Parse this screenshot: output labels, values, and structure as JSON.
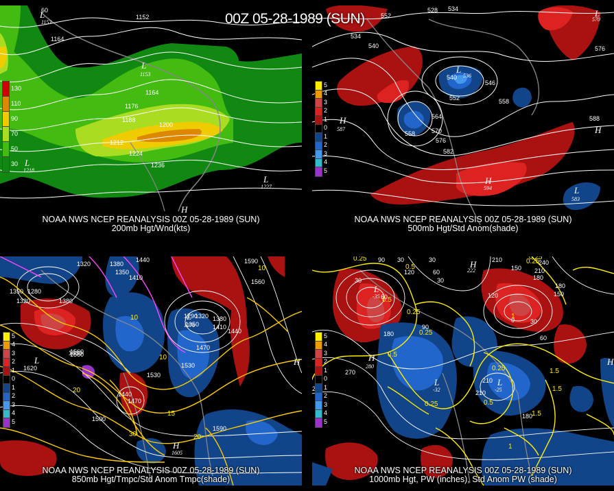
{
  "title": "00Z 05-28-1989 (SUN)",
  "panels": [
    {
      "id": "p1",
      "caption_line1": "NOAA NWS NCEP REANALYSIS 00Z 05-28-1989 (SUN)",
      "caption_line2": "200mb Hgt/Wnd(kts)",
      "legend": [
        {
          "label": "130",
          "color": "#cc0000"
        },
        {
          "label": "110",
          "color": "#dd8800"
        },
        {
          "label": "90",
          "color": "#eecc00"
        },
        {
          "label": "70",
          "color": "#aadd22"
        },
        {
          "label": "50",
          "color": "#44bb11"
        },
        {
          "label": "30",
          "color": "#118811"
        }
      ],
      "contour_labels": [
        "1152",
        "1164",
        "1153",
        "1164",
        "1176",
        "1188",
        "1200",
        "1212",
        "1224",
        "1236",
        "1218",
        "1227",
        "60"
      ],
      "pressure_centers": [
        {
          "letter": "L",
          "value": "1153"
        },
        {
          "letter": "L",
          "value": "1153"
        },
        {
          "letter": "L",
          "value": "1218"
        },
        {
          "letter": "L",
          "value": "1227"
        },
        {
          "letter": "H",
          "value": ""
        }
      ]
    },
    {
      "id": "p2",
      "caption_line1": "NOAA NWS NCEP REANALYSIS 00Z 05-28-1989 (SUN)",
      "caption_line2": "500mb Hgt/Std Anom(shade)",
      "legend": [
        {
          "label": "5",
          "color": "#ffee00"
        },
        {
          "label": "4",
          "color": "#ee9900"
        },
        {
          "label": "3",
          "color": "#cc4444"
        },
        {
          "label": "2",
          "color": "#dd2222"
        },
        {
          "label": "1",
          "color": "#aa1111"
        },
        {
          "label": "0",
          "color": "#000000"
        },
        {
          "label": "1",
          "color": "#114488"
        },
        {
          "label": "2",
          "color": "#2266cc"
        },
        {
          "label": "3",
          "color": "#4499ee"
        },
        {
          "label": "4",
          "color": "#33bbcc"
        },
        {
          "label": "5",
          "color": "#9933cc"
        }
      ],
      "contour_labels": [
        "552",
        "528",
        "534",
        "534",
        "540",
        "540",
        "546",
        "552",
        "558",
        "564",
        "570",
        "576",
        "582",
        "558",
        "576",
        "588"
      ],
      "pressure_centers": [
        {
          "letter": "L",
          "value": "536"
        },
        {
          "letter": "H",
          "value": "587"
        },
        {
          "letter": "H",
          "value": "594"
        },
        {
          "letter": "L",
          "value": "583"
        },
        {
          "letter": "L",
          "value": "570"
        },
        {
          "letter": "H",
          "value": "588"
        }
      ]
    },
    {
      "id": "p3",
      "caption_line1": "NOAA NWS NCEP REANALYSIS 00Z 05-28-1989 (SUN)",
      "caption_line2": "850mb Hgt/Tmpc/Std Anom Tmpc(shade)",
      "legend": [
        {
          "label": "5",
          "color": "#ffee00"
        },
        {
          "label": "4",
          "color": "#ee9900"
        },
        {
          "label": "3",
          "color": "#cc4444"
        },
        {
          "label": "2",
          "color": "#dd2222"
        },
        {
          "label": "1",
          "color": "#aa1111"
        },
        {
          "label": "0",
          "color": "#000000"
        },
        {
          "label": "1",
          "color": "#114488"
        },
        {
          "label": "2",
          "color": "#2266cc"
        },
        {
          "label": "3",
          "color": "#4499ee"
        },
        {
          "label": "4",
          "color": "#33bbcc"
        },
        {
          "label": "5",
          "color": "#9933cc"
        }
      ],
      "contour_labels": [
        "1320",
        "1380",
        "1350",
        "1410",
        "1440",
        "1500",
        "1350",
        "1280",
        "1320",
        "1380",
        "1290",
        "1320",
        "1350",
        "1380",
        "1410",
        "1440",
        "1470",
        "1530",
        "1560",
        "1590",
        "1620",
        "1440",
        "1470",
        "1500",
        "1530",
        "1560",
        "1590",
        "1605"
      ],
      "temp_labels": [
        "10",
        "10",
        "10",
        "15",
        "20",
        "30",
        "20"
      ],
      "pressure_centers": [
        {
          "letter": "L",
          "value": "1276"
        },
        {
          "letter": "H",
          "value": ""
        },
        {
          "letter": "H",
          "value": "1605"
        },
        {
          "letter": "L",
          "value": ""
        }
      ]
    },
    {
      "id": "p4",
      "caption_line1": "NOAA NWS NCEP REANALYSIS 00Z 05-28-1989 (SUN)",
      "caption_line2": "1000mb Hgt, PW (inches), Std Anom PW (shade)",
      "legend": [
        {
          "label": "5",
          "color": "#ffee00"
        },
        {
          "label": "4",
          "color": "#ee9900"
        },
        {
          "label": "3",
          "color": "#cc4444"
        },
        {
          "label": "2",
          "color": "#dd2222"
        },
        {
          "label": "1",
          "color": "#aa1111"
        },
        {
          "label": "0",
          "color": "#000000"
        },
        {
          "label": "1",
          "color": "#114488"
        },
        {
          "label": "2",
          "color": "#2266cc"
        },
        {
          "label": "3",
          "color": "#4499ee"
        },
        {
          "label": "4",
          "color": "#33bbcc"
        },
        {
          "label": "5",
          "color": "#9933cc"
        }
      ],
      "contour_labels": [
        "90",
        "30",
        "120",
        "60",
        "30",
        "120",
        "150",
        "180",
        "210",
        "240",
        "180",
        "150",
        "30",
        "0",
        "30",
        "60",
        "120",
        "90",
        "60",
        "30",
        "180",
        "210",
        "240",
        "270",
        "210",
        "180"
      ],
      "pw_labels": [
        "0.25",
        "0.5",
        "0.25",
        "0.5",
        "0.25",
        "0.5",
        "0.25",
        "0.25",
        "0.5",
        "0.25",
        "1.5",
        "1",
        "1.5",
        "1.5",
        "1",
        "0.25"
      ],
      "pressure_centers": [
        {
          "letter": "L",
          "value": "-35"
        },
        {
          "letter": "H",
          "value": "280"
        },
        {
          "letter": "L",
          "value": "-32"
        },
        {
          "letter": "H",
          "value": "222"
        },
        {
          "letter": "H",
          "value": ""
        },
        {
          "letter": "L",
          "value": "-25"
        }
      ]
    }
  ]
}
